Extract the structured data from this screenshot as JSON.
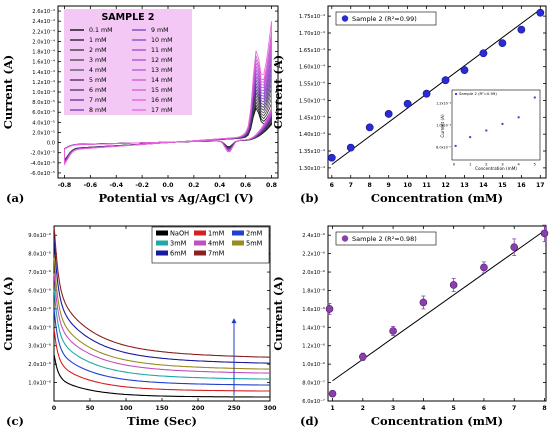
{
  "panels": [
    {
      "id": "a",
      "chart_data": {
        "type": "line",
        "xlabel": "Potential vs Ag/AgCl (V)",
        "ylabel": "Current (A)",
        "xlim": [
          -0.85,
          0.85
        ],
        "ylim": [
          -7e-05,
          0.00027
        ],
        "x_ticks": [
          -0.8,
          -0.6,
          -0.4,
          -0.2,
          0.0,
          0.2,
          0.4,
          0.6,
          0.8
        ],
        "x_tick_labels": [
          "-0.8",
          "-0.6",
          "-0.4",
          "-0.2",
          "0.0",
          "0.2",
          "0.4",
          "0.6",
          "0.8"
        ],
        "y_ticks": [
          -6e-05,
          -4e-05,
          -2e-05,
          0,
          2e-05,
          4e-05,
          6e-05,
          8e-05,
          0.0001,
          0.00012,
          0.00014,
          0.00016,
          0.00018,
          0.0002,
          0.00022,
          0.00024,
          0.00026
        ],
        "y_tick_labels": [
          "-6.0x10⁻⁵",
          "-4.0x10⁻⁵",
          "-2.0x10⁻⁵",
          "0.0",
          "2.0x10⁻⁵",
          "4.0x10⁻⁵",
          "6.0x10⁻⁵",
          "8.0x10⁻⁵",
          "1.0x10⁻⁴",
          "1.2x10⁻⁴",
          "1.4x10⁻⁴",
          "1.6x10⁻⁴",
          "1.8x10⁻⁴",
          "2.0x10⁻⁴",
          "2.2x10⁻⁴",
          "2.4x10⁻⁴",
          "2.6x10⁻⁴"
        ],
        "legend_title": "SAMPLE 2",
        "legend_background": "#f4c8f4",
        "series_names": [
          "0.1 mM",
          "1 mM",
          "2 mM",
          "3 mM",
          "4 mM",
          "5 mM",
          "6 mM",
          "7 mM",
          "8 mM",
          "9 mM",
          "10 mM",
          "11 mM",
          "12 mM",
          "13 mM",
          "14 mM",
          "15 mM",
          "16 mM",
          "17 mM"
        ],
        "series_colors": [
          "#000000",
          "#1a1a1a",
          "#333333",
          "#444444",
          "#555555",
          "#3b2b4f",
          "#4b3070",
          "#5a3590",
          "#6a3aa8",
          "#7a3fb8",
          "#8a44c4",
          "#9a49cc",
          "#aa4ed0",
          "#ba53d4",
          "#c858d8",
          "#d25dd8",
          "#dc62d8",
          "#e667d8"
        ],
        "peak_current_at_0_8V": [
          8e-05,
          9e-05,
          0.0001,
          0.00011,
          0.00012,
          0.00013,
          0.00014,
          0.00015,
          0.00016,
          0.00017,
          0.00018,
          0.00019,
          0.0002,
          0.00021,
          0.00022,
          0.00023,
          0.00024,
          0.00026
        ],
        "anodic_peak_x": 0.68,
        "cathodic_peak_x": 0.47,
        "panel_label": "(a)"
      }
    },
    {
      "id": "b",
      "chart_data": {
        "type": "scatter",
        "xlabel": "Concentration (mM)",
        "ylabel": "Current (A)",
        "xlim": [
          5.8,
          17.3
        ],
        "ylim": [
          0.000127,
          0.000178
        ],
        "x_ticks": [
          6,
          7,
          8,
          9,
          10,
          11,
          12,
          13,
          14,
          15,
          16,
          17
        ],
        "x_tick_labels": [
          "6",
          "7",
          "8",
          "9",
          "10",
          "11",
          "12",
          "13",
          "14",
          "15",
          "16",
          "17"
        ],
        "y_ticks": [
          0.00013,
          0.000135,
          0.00014,
          0.000145,
          0.00015,
          0.000155,
          0.00016,
          0.000165,
          0.00017,
          0.000175
        ],
        "y_tick_labels": [
          "1.30x10⁻⁴",
          "1.35x10⁻⁴",
          "1.40x10⁻⁴",
          "1.45x10⁻⁴",
          "1.50x10⁻⁴",
          "1.55x10⁻⁴",
          "1.60x10⁻⁴",
          "1.65x10⁻⁴",
          "1.70x10⁻⁴",
          "1.75x10⁻⁴"
        ],
        "series": [
          {
            "name": "Sample 2 (R²=0.99)",
            "x": [
              6,
              7,
              8,
              9,
              10,
              11,
              12,
              13,
              14,
              15,
              16,
              17
            ],
            "y": [
              0.000133,
              0.000136,
              0.000142,
              0.000146,
              0.000149,
              0.000152,
              0.000156,
              0.000159,
              0.000164,
              0.000167,
              0.000171,
              0.000176
            ],
            "color": "#2b2bd6"
          }
        ],
        "fit_line": {
          "x": [
            6,
            17
          ],
          "y": [
            0.000131,
            0.000177
          ]
        },
        "legend_position": "top-left",
        "inset": {
          "legend": "Sample 2 (R²=0.99)",
          "xlabel": "Concentration (mM)",
          "ylabel": "Current (A)",
          "x": [
            0.1,
            1,
            2,
            3,
            4,
            5
          ],
          "y": [
            8.1e-05,
            8.9e-05,
            9.5e-05,
            0.000101,
            0.000107,
            0.000125
          ],
          "x_ticks": [
            0,
            1,
            2,
            3,
            4,
            5
          ],
          "x_tick_labels": [
            "0",
            "1",
            "2",
            "3",
            "4",
            "5"
          ],
          "y_tick_labels": [
            "1.2x10⁻⁴",
            "1.0x10⁻⁴",
            "8.0x10⁻⁵"
          ]
        },
        "panel_label": "(b)"
      }
    },
    {
      "id": "c",
      "chart_data": {
        "type": "line",
        "xlabel": "Time (Sec)",
        "ylabel": "Current (A)",
        "xlim": [
          0,
          300
        ],
        "ylim": [
          0,
          9.5e-06
        ],
        "x_ticks": [
          0,
          50,
          100,
          150,
          200,
          250,
          300
        ],
        "x_tick_labels": [
          "0",
          "50",
          "100",
          "150",
          "200",
          "250",
          "300"
        ],
        "y_ticks": [
          1e-06,
          2e-06,
          3e-06,
          4e-06,
          5e-06,
          6e-06,
          7e-06,
          8e-06,
          9e-06
        ],
        "y_tick_labels": [
          "1.0x10⁻⁶",
          "2.0x10⁻⁶",
          "3.0x10⁻⁶",
          "4.0x10⁻⁶",
          "5.0x10⁻⁶",
          "6.0x10⁻⁶",
          "7.0x10⁻⁶",
          "8.0x10⁻⁶",
          "9.0x10⁻⁶"
        ],
        "series": [
          {
            "name": "NaOH",
            "color": "#000000",
            "plateau": 2e-07,
            "peak": 2.5e-06
          },
          {
            "name": "1mM",
            "color": "#d42020",
            "plateau": 5e-07,
            "peak": 3.8e-06
          },
          {
            "name": "2mM",
            "color": "#2040d0",
            "plateau": 8e-07,
            "peak": 4.8e-06
          },
          {
            "name": "3mM",
            "color": "#20a8a8",
            "plateau": 1.1e-06,
            "peak": 5.8e-06
          },
          {
            "name": "4mM",
            "color": "#c050c0",
            "plateau": 1.4e-06,
            "peak": 6.6e-06
          },
          {
            "name": "5mM",
            "color": "#9a8a20",
            "plateau": 1.6e-06,
            "peak": 7.4e-06
          },
          {
            "name": "6mM",
            "color": "#1a1aa0",
            "plateau": 1.9e-06,
            "peak": 8.4e-06
          },
          {
            "name": "7mM",
            "color": "#8a2020",
            "plateau": 2.2e-06,
            "peak": 9.2e-06
          }
        ],
        "legend_position": "top-right",
        "arrow": {
          "x": 250,
          "y_from": 3e-07,
          "y_to": 4.5e-06,
          "color": "#1e3ec8"
        },
        "panel_label": "(c)"
      }
    },
    {
      "id": "d",
      "chart_data": {
        "type": "scatter",
        "xlabel": "Concentration (mM)",
        "ylabel": "Current (A)",
        "xlim": [
          0.85,
          8.05
        ],
        "ylim": [
          6e-07,
          2.5e-06
        ],
        "x_ticks": [
          1,
          2,
          3,
          4,
          5,
          6,
          7,
          8
        ],
        "x_tick_labels": [
          "1",
          "2",
          "3",
          "4",
          "5",
          "6",
          "7",
          "8"
        ],
        "y_ticks": [
          6e-07,
          8e-07,
          1e-06,
          1.2e-06,
          1.4e-06,
          1.6e-06,
          1.8e-06,
          2e-06,
          2.2e-06,
          2.4e-06
        ],
        "y_tick_labels": [
          "6.0x10⁻⁷",
          "8.0x10⁻⁷",
          "1.0x10⁻⁶",
          "1.2x10⁻⁶",
          "1.4x10⁻⁶",
          "1.6x10⁻⁶",
          "1.8x10⁻⁶",
          "2.0x10⁻⁶",
          "2.2x10⁻⁶",
          "2.4x10⁻⁶"
        ],
        "series": [
          {
            "name": "Sample 2 (R²=0.98)",
            "x": [
              0.9,
              1,
              2,
              3,
              4,
              5,
              6,
              7,
              8
            ],
            "y": [
              1.6e-06,
              6.8e-07,
              1.08e-06,
              1.36e-06,
              1.67e-06,
              1.86e-06,
              2.05e-06,
              2.27e-06,
              2.42e-06
            ],
            "err": [
              6e-08,
              3e-08,
              4e-08,
              5e-08,
              7e-08,
              7e-08,
              6e-08,
              9e-08,
              9e-08
            ],
            "color": "#8b3fae"
          }
        ],
        "fit_line": {
          "x": [
            1,
            8
          ],
          "y": [
            8.2e-07,
            2.45e-06
          ]
        },
        "legend_position": "top-left",
        "panel_label": "(d)"
      }
    }
  ]
}
